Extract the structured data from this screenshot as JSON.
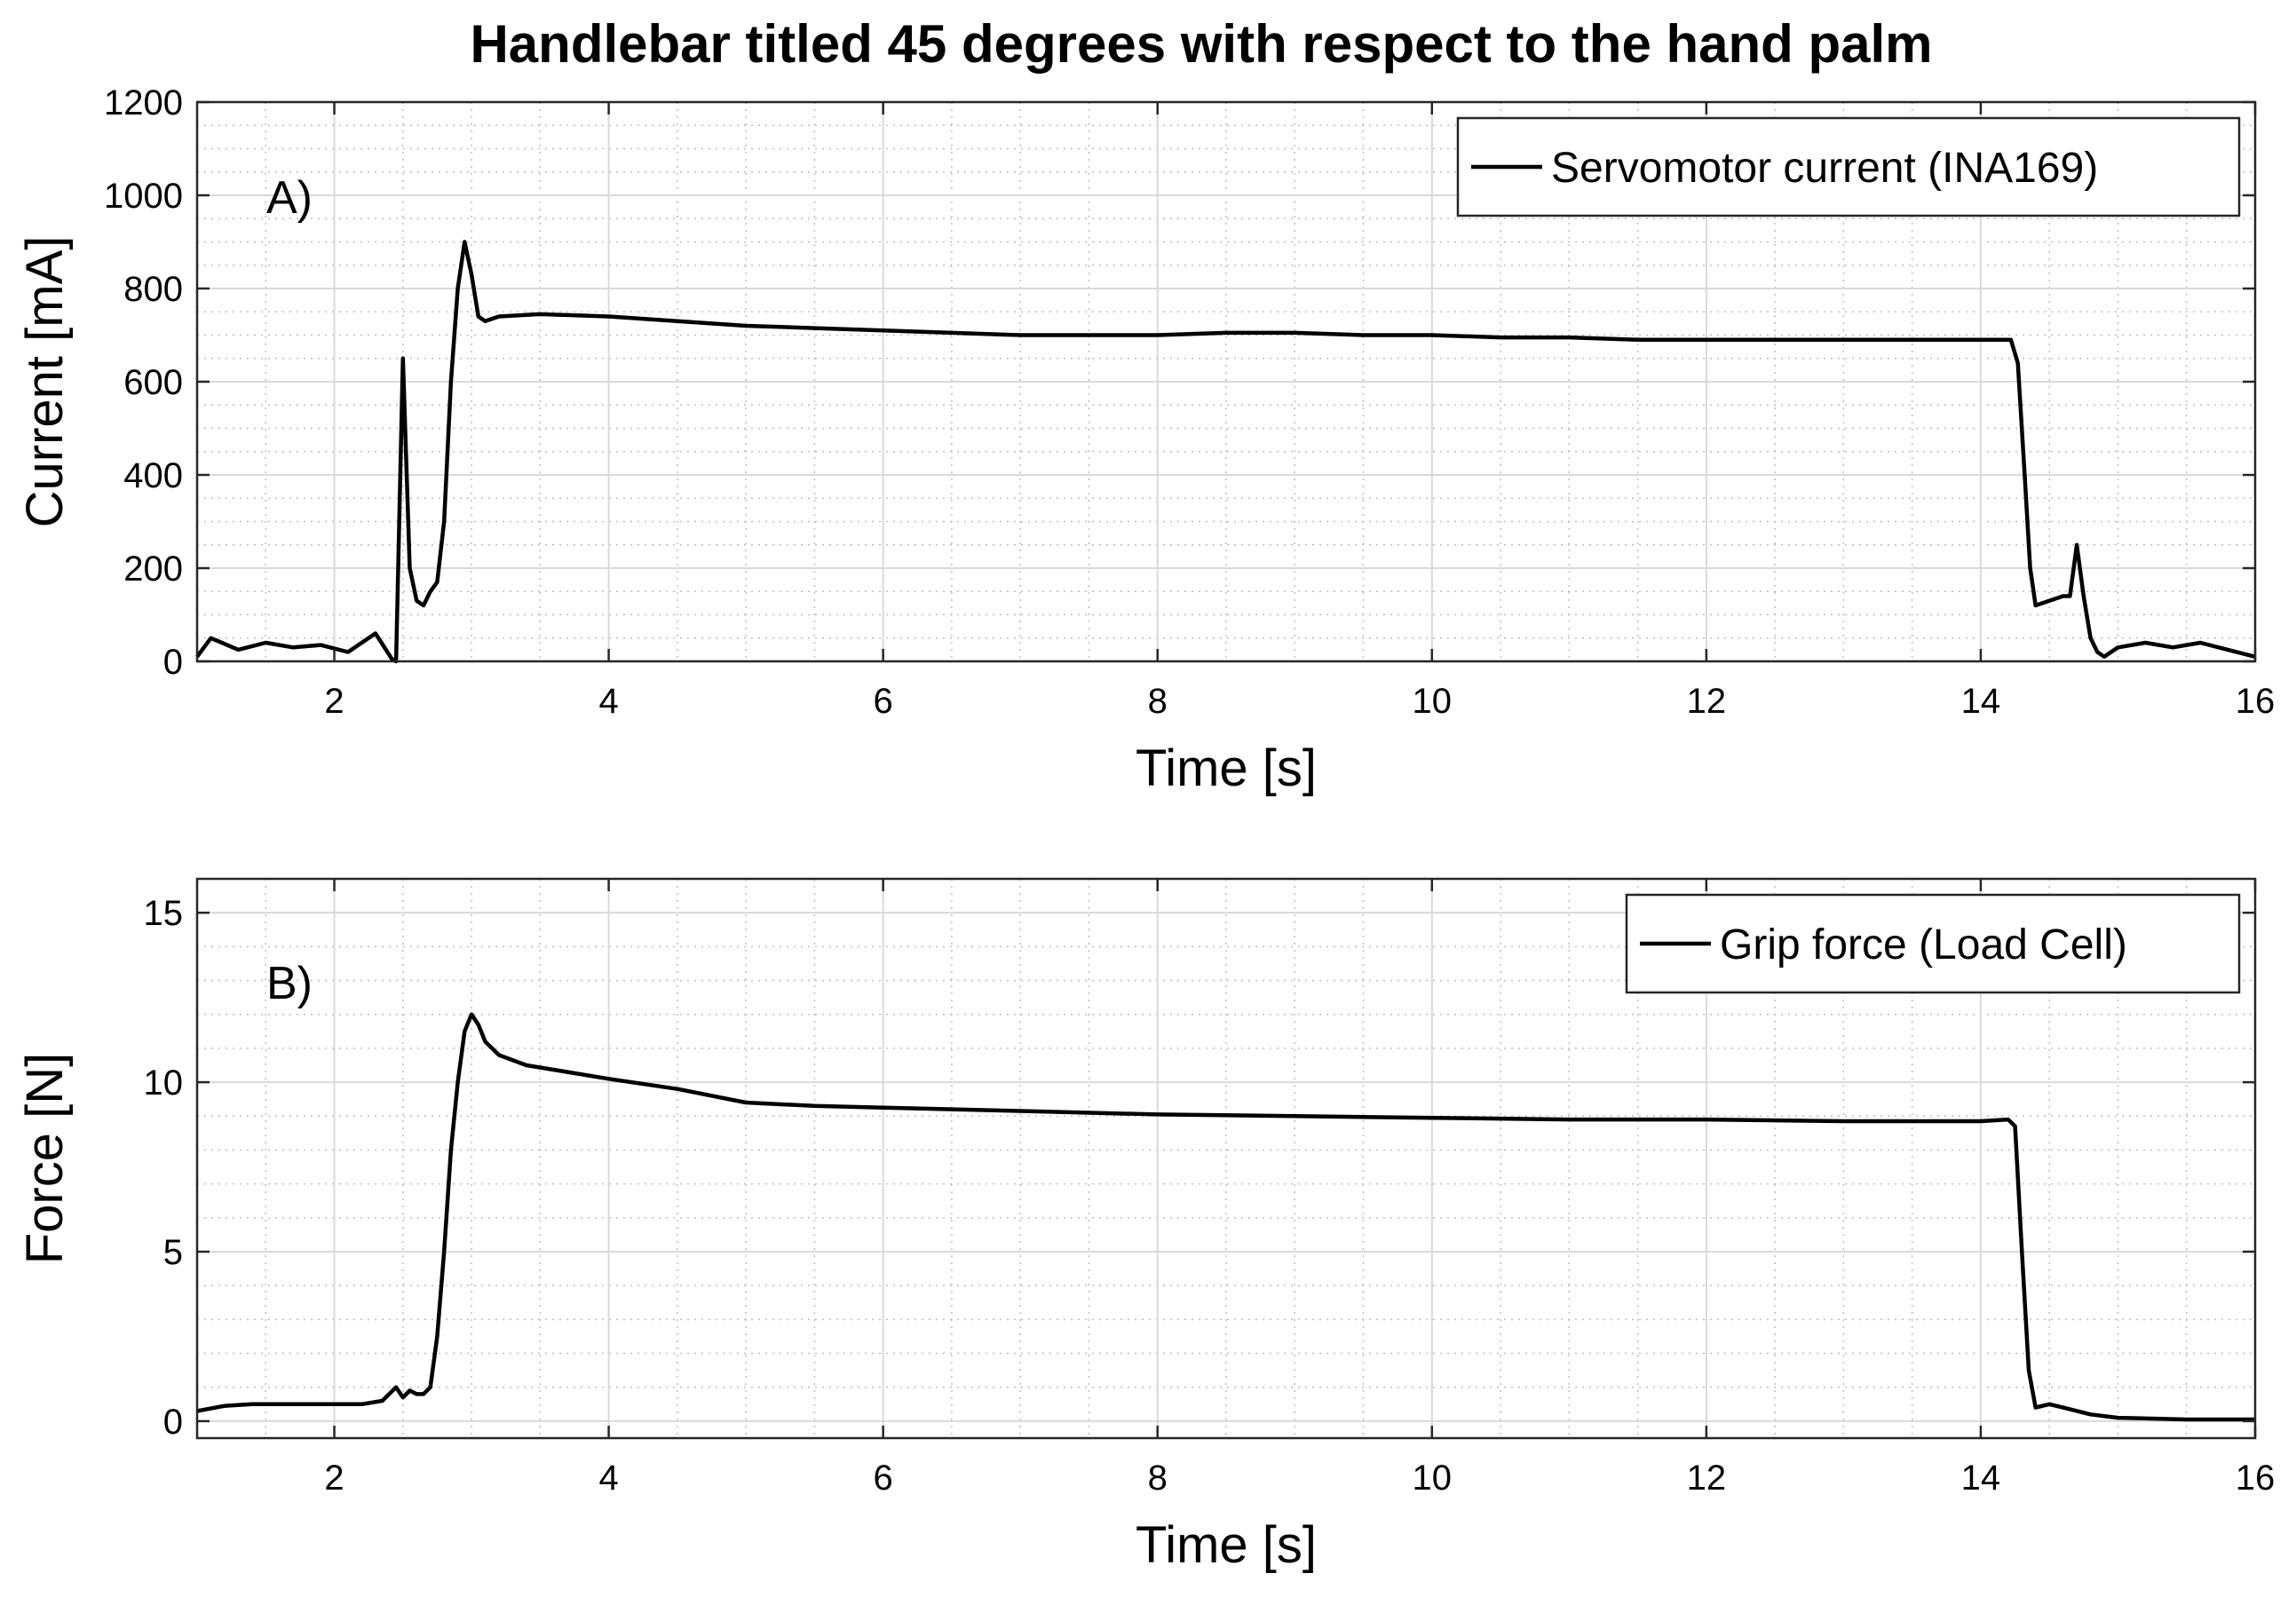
{
  "chart_data": {
    "title": "Handlebar titled 45 degrees with respect to the hand palm",
    "panels": [
      {
        "type": "line",
        "panel_label": "A)",
        "xlabel": "Time [s]",
        "ylabel": "Current [mA]",
        "xlim": [
          1,
          16
        ],
        "ylim": [
          0,
          1200
        ],
        "xticks": [
          2,
          4,
          6,
          8,
          10,
          12,
          14,
          16
        ],
        "yticks": [
          0,
          200,
          400,
          600,
          800,
          1000,
          1200
        ],
        "grid": "major and minor",
        "legend_position": "top-right",
        "series": [
          {
            "name": "Servomotor current (INA169)",
            "color": "#000000",
            "x": [
              1.0,
              1.1,
              1.3,
              1.5,
              1.7,
              1.9,
              2.1,
              2.3,
              2.42,
              2.45,
              2.5,
              2.55,
              2.6,
              2.65,
              2.7,
              2.75,
              2.8,
              2.85,
              2.9,
              2.95,
              3.0,
              3.05,
              3.1,
              3.2,
              3.5,
              4.0,
              4.5,
              5.0,
              5.5,
              6.0,
              6.5,
              7.0,
              7.5,
              8.0,
              8.5,
              9.0,
              9.5,
              10.0,
              10.5,
              11.0,
              11.5,
              12.0,
              12.5,
              13.0,
              13.5,
              14.0,
              14.15,
              14.22,
              14.27,
              14.32,
              14.36,
              14.4,
              14.5,
              14.6,
              14.65,
              14.7,
              14.75,
              14.8,
              14.85,
              14.9,
              15.0,
              15.2,
              15.4,
              15.6,
              15.8,
              16.0
            ],
            "y": [
              10,
              50,
              25,
              40,
              30,
              35,
              20,
              60,
              5,
              0,
              650,
              200,
              130,
              120,
              150,
              170,
              300,
              600,
              800,
              900,
              830,
              740,
              730,
              740,
              745,
              740,
              730,
              720,
              715,
              710,
              705,
              700,
              700,
              700,
              705,
              705,
              700,
              700,
              695,
              695,
              690,
              690,
              690,
              690,
              690,
              690,
              690,
              690,
              640,
              400,
              200,
              120,
              130,
              140,
              140,
              250,
              140,
              50,
              20,
              10,
              30,
              40,
              30,
              40,
              25,
              10
            ]
          }
        ]
      },
      {
        "type": "line",
        "panel_label": "B)",
        "xlabel": "Time [s]",
        "ylabel": "Force [N]",
        "xlim": [
          1,
          16
        ],
        "ylim": [
          -0.5,
          16
        ],
        "xticks": [
          2,
          4,
          6,
          8,
          10,
          12,
          14,
          16
        ],
        "yticks": [
          0,
          5,
          10,
          15
        ],
        "grid": "major and minor",
        "legend_position": "top-right",
        "series": [
          {
            "name": "Grip force (Load Cell)",
            "color": "#000000",
            "x": [
              1.0,
              1.2,
              1.4,
              1.6,
              1.8,
              2.0,
              2.2,
              2.35,
              2.45,
              2.5,
              2.55,
              2.6,
              2.65,
              2.7,
              2.75,
              2.8,
              2.85,
              2.9,
              2.95,
              3.0,
              3.05,
              3.1,
              3.2,
              3.4,
              3.7,
              4.0,
              4.5,
              5.0,
              5.5,
              6.0,
              7.0,
              8.0,
              9.0,
              10.0,
              11.0,
              12.0,
              13.0,
              14.0,
              14.2,
              14.25,
              14.3,
              14.35,
              14.4,
              14.5,
              14.6,
              14.8,
              15.0,
              15.5,
              16.0
            ],
            "y": [
              0.3,
              0.45,
              0.5,
              0.5,
              0.5,
              0.5,
              0.5,
              0.6,
              1.0,
              0.7,
              0.9,
              0.8,
              0.8,
              1.0,
              2.5,
              5.0,
              8.0,
              10.0,
              11.5,
              12.0,
              11.7,
              11.2,
              10.8,
              10.5,
              10.3,
              10.1,
              9.8,
              9.4,
              9.3,
              9.25,
              9.15,
              9.05,
              9.0,
              8.95,
              8.9,
              8.9,
              8.85,
              8.85,
              8.9,
              8.7,
              5.0,
              1.5,
              0.4,
              0.5,
              0.4,
              0.2,
              0.1,
              0.05,
              0.05
            ]
          }
        ]
      }
    ]
  }
}
